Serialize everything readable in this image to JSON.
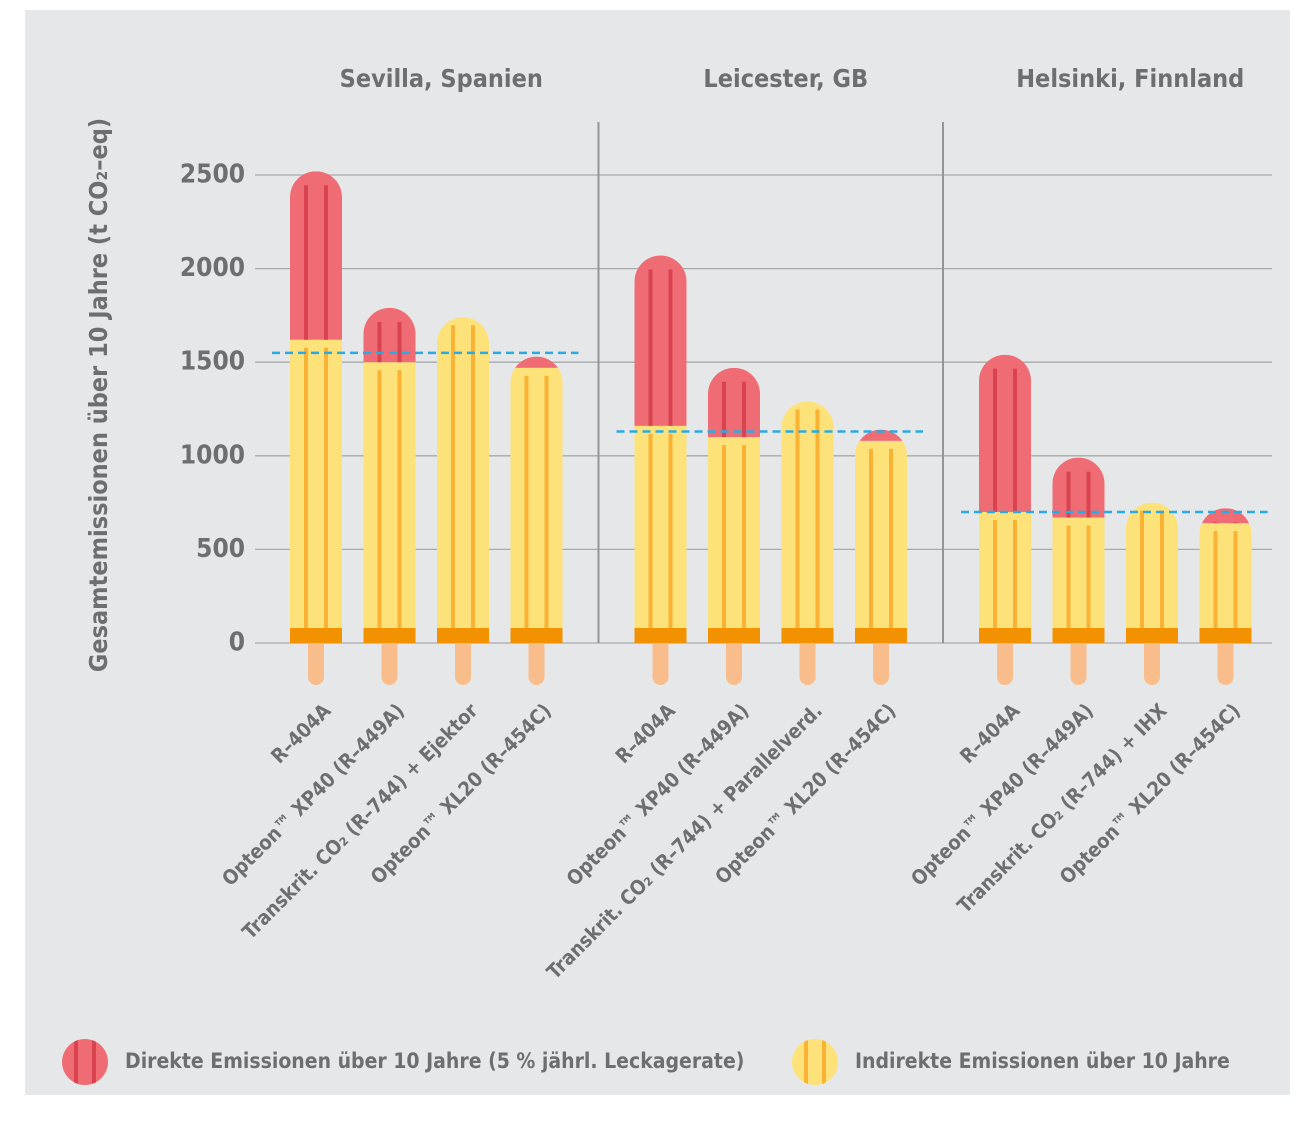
{
  "chart_data": {
    "type": "bar",
    "stacked": true,
    "y_label": "Gesamtemissionen über 10 Jahre (t CO₂–eq)",
    "ylim": [
      0,
      2500
    ],
    "yticks": [
      0,
      500,
      1000,
      1500,
      2000,
      2500
    ],
    "grid": true,
    "series": [
      {
        "name": "Direkte Emissionen über 10 Jahre (5 % jährl. Leckagerate)",
        "color": "#f06c75"
      },
      {
        "name": "Indirekte Emissionen über 10 Jahre",
        "color": "#fde27a"
      }
    ],
    "groups": [
      {
        "title": "Sevilla, Spanien",
        "categories": [
          "R–404A",
          "Opteon™ XP40 (R–449A)",
          "Transkrit. CO₂ (R–744) + Ejektor",
          "Opteon™ XL20 (R–454C)"
        ],
        "series": [
          {
            "values": [
              900,
              290,
              0,
              60
            ]
          },
          {
            "values": [
              1620,
              1500,
              1740,
              1470
            ]
          }
        ],
        "reference": 1550
      },
      {
        "title": "Leicester, GB",
        "categories": [
          "R–404A",
          "Opteon™ XP40 (R–449A)",
          "Transkrit. CO₂ (R–744) + Parallelverd.",
          "Opteon™ XL20 (R–454C)"
        ],
        "series": [
          {
            "values": [
              910,
              370,
              0,
              60
            ]
          },
          {
            "values": [
              1160,
              1100,
              1290,
              1080
            ]
          }
        ],
        "reference": 1130
      },
      {
        "title": "Helsinki, Finnland",
        "categories": [
          "R–404A",
          "Opteon™ XP40 (R–449A)",
          "Transkrit. CO₂ (R–744) + IHX",
          "Opteon™ XL20 (R–454C)"
        ],
        "series": [
          {
            "values": [
              840,
              320,
              0,
              80
            ]
          },
          {
            "values": [
              700,
              670,
              750,
              640
            ]
          }
        ],
        "reference": 700
      }
    ]
  }
}
